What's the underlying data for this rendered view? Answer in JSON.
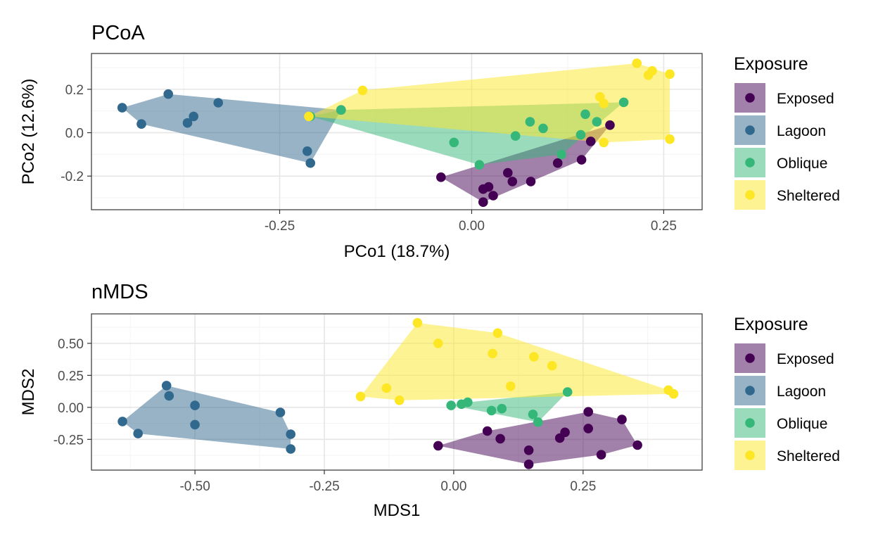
{
  "chart_data": [
    {
      "type": "scatter",
      "title": "PCoA",
      "xlabel": "PCo1 (18.7%)",
      "ylabel": "PCo2 (12.6%)",
      "xlim": [
        -0.495,
        0.3
      ],
      "ylim": [
        -0.355,
        0.365
      ],
      "x_ticks": [
        -0.25,
        0.0,
        0.25
      ],
      "x_tick_labels": [
        "-0.25",
        "0.00",
        "0.25"
      ],
      "y_ticks": [
        -0.2,
        0.0,
        0.2
      ],
      "y_tick_labels": [
        "-0.2",
        "0.0",
        "0.2"
      ],
      "grid": true,
      "legend": {
        "title": "Exposure",
        "position": "right"
      },
      "series": [
        {
          "name": "Exposed",
          "color": "#440154",
          "points": [
            [
              -0.04,
              -0.205
            ],
            [
              0.015,
              -0.26
            ],
            [
              0.022,
              -0.25
            ],
            [
              0.028,
              -0.29
            ],
            [
              0.015,
              -0.32
            ],
            [
              0.047,
              -0.185
            ],
            [
              0.053,
              -0.225
            ],
            [
              0.077,
              -0.225
            ],
            [
              0.112,
              -0.14
            ],
            [
              0.143,
              -0.125
            ],
            [
              0.155,
              -0.04
            ],
            [
              0.18,
              0.035
            ]
          ]
        },
        {
          "name": "Lagoon",
          "color": "#31688E",
          "points": [
            [
              -0.455,
              0.115
            ],
            [
              -0.43,
              0.04
            ],
            [
              -0.395,
              0.178
            ],
            [
              -0.37,
              0.045
            ],
            [
              -0.362,
              0.075
            ],
            [
              -0.33,
              0.138
            ],
            [
              -0.214,
              -0.085
            ],
            [
              -0.21,
              -0.14
            ],
            [
              -0.17,
              0.105
            ]
          ]
        },
        {
          "name": "Oblique",
          "color": "#35B779",
          "points": [
            [
              -0.023,
              -0.045
            ],
            [
              0.01,
              -0.148
            ],
            [
              0.057,
              -0.015
            ],
            [
              0.076,
              0.05
            ],
            [
              0.093,
              0.02
            ],
            [
              0.117,
              -0.1
            ],
            [
              0.142,
              -0.01
            ],
            [
              0.148,
              0.085
            ],
            [
              0.163,
              0.05
            ],
            [
              0.198,
              0.14
            ],
            [
              -0.21,
              0.075
            ],
            [
              -0.17,
              0.105
            ]
          ]
        },
        {
          "name": "Sheltered",
          "color": "#FDE725",
          "points": [
            [
              -0.212,
              0.075
            ],
            [
              -0.142,
              0.195
            ],
            [
              0.167,
              0.165
            ],
            [
              0.172,
              0.135
            ],
            [
              0.172,
              -0.045
            ],
            [
              0.215,
              0.32
            ],
            [
              0.23,
              0.265
            ],
            [
              0.235,
              0.285
            ],
            [
              0.258,
              0.27
            ],
            [
              0.258,
              -0.03
            ]
          ]
        }
      ]
    },
    {
      "type": "scatter",
      "title": "nMDS",
      "xlabel": "MDS1",
      "ylabel": "MDS2",
      "xlim": [
        -0.7,
        0.48
      ],
      "ylim": [
        -0.49,
        0.73
      ],
      "x_ticks": [
        -0.5,
        -0.25,
        0.0,
        0.25
      ],
      "x_tick_labels": [
        "-0.50",
        "-0.25",
        "0.00",
        "0.25"
      ],
      "y_ticks": [
        -0.25,
        0.0,
        0.25,
        0.5
      ],
      "y_tick_labels": [
        "-0.25",
        "0.00",
        "0.25",
        "0.50"
      ],
      "grid": true,
      "legend": {
        "title": "Exposure",
        "position": "right"
      },
      "series": [
        {
          "name": "Exposed",
          "color": "#440154",
          "points": [
            [
              -0.03,
              -0.3
            ],
            [
              0.065,
              -0.185
            ],
            [
              0.09,
              -0.245
            ],
            [
              0.145,
              -0.335
            ],
            [
              0.145,
              -0.445
            ],
            [
              0.205,
              -0.24
            ],
            [
              0.215,
              -0.195
            ],
            [
              0.26,
              -0.035
            ],
            [
              0.26,
              -0.165
            ],
            [
              0.285,
              -0.37
            ],
            [
              0.325,
              -0.095
            ],
            [
              0.355,
              -0.295
            ]
          ]
        },
        {
          "name": "Lagoon",
          "color": "#31688E",
          "points": [
            [
              -0.64,
              -0.11
            ],
            [
              -0.61,
              -0.205
            ],
            [
              -0.555,
              0.17
            ],
            [
              -0.55,
              0.09
            ],
            [
              -0.5,
              0.015
            ],
            [
              -0.5,
              -0.135
            ],
            [
              -0.335,
              -0.04
            ],
            [
              -0.315,
              -0.21
            ],
            [
              -0.315,
              -0.325
            ]
          ]
        },
        {
          "name": "Oblique",
          "color": "#35B779",
          "points": [
            [
              -0.005,
              0.015
            ],
            [
              0.015,
              0.025
            ],
            [
              0.027,
              0.04
            ],
            [
              0.073,
              -0.025
            ],
            [
              0.093,
              -0.01
            ],
            [
              0.153,
              -0.055
            ],
            [
              0.163,
              -0.115
            ],
            [
              0.22,
              0.12
            ]
          ]
        },
        {
          "name": "Sheltered",
          "color": "#FDE725",
          "points": [
            [
              -0.07,
              0.66
            ],
            [
              -0.03,
              0.5
            ],
            [
              -0.18,
              0.085
            ],
            [
              -0.13,
              0.15
            ],
            [
              -0.105,
              0.055
            ],
            [
              0.075,
              0.42
            ],
            [
              0.085,
              0.58
            ],
            [
              0.11,
              0.165
            ],
            [
              0.155,
              0.395
            ],
            [
              0.19,
              0.325
            ],
            [
              0.415,
              0.135
            ],
            [
              0.425,
              0.105
            ]
          ]
        }
      ]
    }
  ]
}
